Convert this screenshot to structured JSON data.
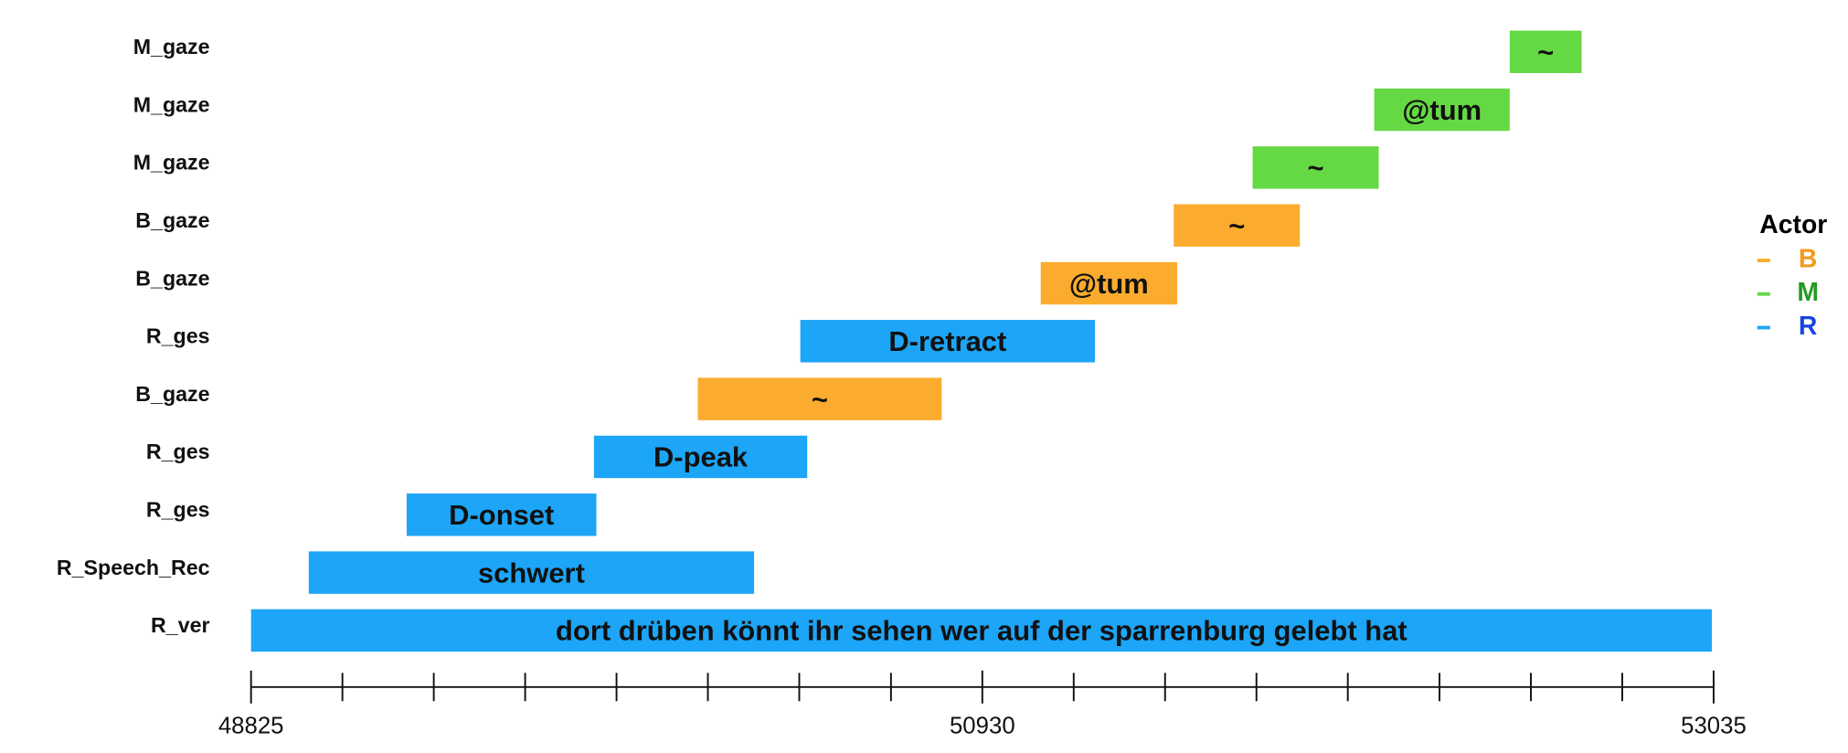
{
  "chart_data": {
    "type": "timeline",
    "tasks": [
      {
        "label": "M_gaze",
        "actor": "M",
        "text": "~",
        "start": 52448,
        "end": 52655
      },
      {
        "label": "M_gaze",
        "actor": "M",
        "text": "@tum",
        "start": 52058,
        "end": 52448
      },
      {
        "label": "M_gaze",
        "actor": "M",
        "text": "~",
        "start": 51708,
        "end": 52071
      },
      {
        "label": "B_gaze",
        "actor": "B",
        "text": "~",
        "start": 51481,
        "end": 51844
      },
      {
        "label": "B_gaze",
        "actor": "B",
        "text": "@tum",
        "start": 51098,
        "end": 51491
      },
      {
        "label": "R_ges",
        "actor": "R",
        "text": "D-retract",
        "start": 50406,
        "end": 51254
      },
      {
        "label": "B_gaze",
        "actor": "B",
        "text": "~",
        "start": 50111,
        "end": 50813
      },
      {
        "label": "R_ges",
        "actor": "R",
        "text": "D-peak",
        "start": 49812,
        "end": 50426
      },
      {
        "label": "R_ges",
        "actor": "R",
        "text": "D-onset",
        "start": 49273,
        "end": 49819
      },
      {
        "label": "R_Speech_Rec",
        "actor": "R",
        "text": "schwert",
        "start": 48991,
        "end": 50273
      },
      {
        "label": "R_ver",
        "actor": "R",
        "text": "dort drüben könnt ihr sehen wer auf der sparrenburg gelebt hat",
        "start": 48825,
        "end": 53030
      }
    ],
    "xlim": [
      48825,
      53035
    ],
    "xticks": [
      48825,
      50930,
      53035
    ],
    "xminorticks": [
      49088,
      49351,
      49614,
      49877,
      50140,
      50403,
      50667,
      51193,
      51456,
      51719,
      51982,
      52246,
      52509,
      52772
    ],
    "legend": {
      "title": "Actor",
      "position": "right",
      "items": [
        {
          "name": "B",
          "color": "#fbac2e",
          "text_color": "#f29a1e"
        },
        {
          "name": "M",
          "color": "#65d944",
          "text_color": "#229a22"
        },
        {
          "name": "R",
          "color": "#1da5f7",
          "text_color": "#1a44e0"
        }
      ]
    }
  }
}
